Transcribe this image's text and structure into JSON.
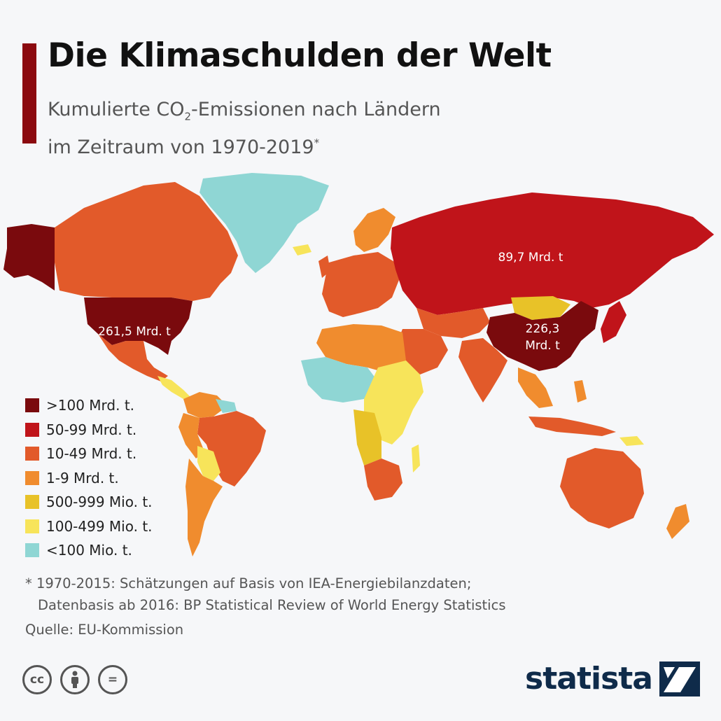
{
  "title": "Die Klimaschulden der Welt",
  "subtitle_line1_pre": "Kumulierte CO",
  "subtitle_line1_sub": "2",
  "subtitle_line1_post": "-Emissionen nach Ländern",
  "subtitle_line2": "im Zeitraum von 1970-2019",
  "subtitle_star": "*",
  "map_labels": {
    "usa": "261,5 Mrd. t",
    "russia": "89,7 Mrd. t",
    "china_1": "226,3",
    "china_2": "Mrd. t"
  },
  "legend": [
    {
      "label": ">100 Mrd. t.",
      "color": "#7a0a0d"
    },
    {
      "label": "50-99 Mrd. t.",
      "color": "#c0141a"
    },
    {
      "label": "10-49 Mrd. t.",
      "color": "#e25a2a"
    },
    {
      "label": "1-9 Mrd. t.",
      "color": "#f08c2e"
    },
    {
      "label": "500-999 Mio. t.",
      "color": "#e8c228"
    },
    {
      "label": "100-499 Mio. t.",
      "color": "#f7e45a"
    },
    {
      "label": "<100 Mio. t.",
      "color": "#8fd6d4"
    }
  ],
  "footnote_1": "* 1970-2015: Schätzungen auf Basis von IEA-Energiebilanzdaten;",
  "footnote_2": "Datenbasis ab 2016: BP Statistical Review of World Energy Statistics",
  "source": "Quelle: EU-Kommission",
  "license_icons": [
    "cc-icon",
    "by-icon",
    "nd-icon"
  ],
  "license_glyphs": {
    "cc": "cc",
    "nd": "="
  },
  "logo_text": "statista"
}
